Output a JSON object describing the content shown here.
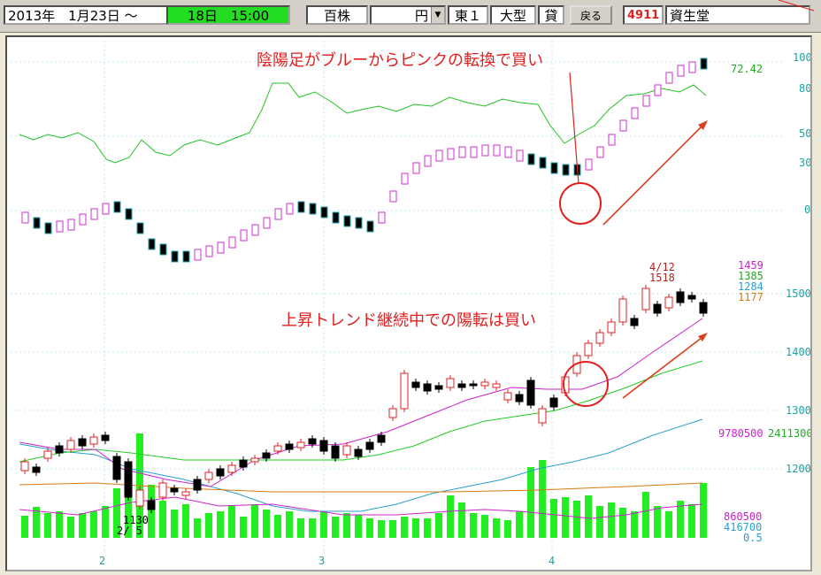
{
  "toolbar": {
    "start_date": "2013年　1月23日",
    "tilde": "～",
    "end_time": "18日　15:00",
    "unit": "百株",
    "currency": "円",
    "market": "東１",
    "size": "大型",
    "lending": "貸",
    "back_button": "戻る",
    "code": "4911",
    "name": "資生堂"
  },
  "annotations": {
    "top": "陰陽足がブルーからピンクの転換で買い",
    "middle": "上昇トレンド継続中での陽転は買い",
    "peak_date": "4/12",
    "peak_price": "1518"
  },
  "labels": {
    "rsi_value": "72.42",
    "osc_ticks": [
      "100",
      "80",
      "50",
      "30",
      "0"
    ],
    "price_ticks": [
      "1500",
      "1400",
      "1300",
      "1200"
    ],
    "ma_values": [
      "1459",
      "1385",
      "1284",
      "1177"
    ],
    "low_note_1": "1130",
    "low_note_2": "2/ 5",
    "vol_top_left": "9780500",
    "vol_top_right": "2411300",
    "vol_values": [
      "860500",
      "416700",
      "0.5"
    ],
    "months": [
      "2",
      "3",
      "4"
    ]
  },
  "colors": {
    "up": "#e02020",
    "down": "#000000",
    "rsi": "#22c322",
    "ma_short": "#cc22cc",
    "ma_mid": "#22cc22",
    "ma_long": "#2aa0d0",
    "ma_vlong": "#d87a10",
    "volume": "#22ee22",
    "axis_label": "#20a0a0"
  }
}
